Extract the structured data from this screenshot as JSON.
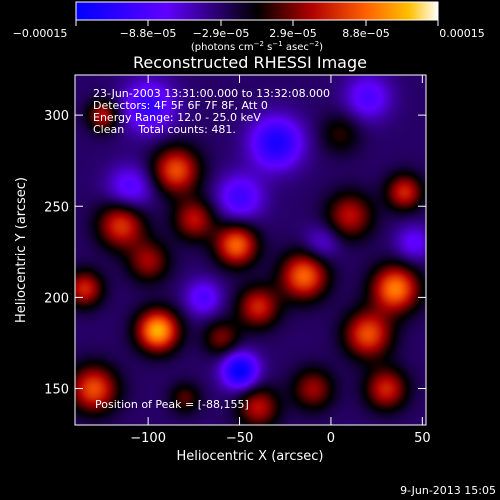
{
  "chart_data": {
    "type": "heatmap",
    "title": "Reconstructed RHESSI Image",
    "xlabel": "Heliocentric X (arcsec)",
    "ylabel": "Heliocentric Y (arcsec)",
    "xlim": [
      -140,
      52
    ],
    "ylim": [
      130,
      322
    ],
    "x_ticks": [
      -100,
      -50,
      0,
      50
    ],
    "x_tick_labels": [
      "−100",
      "−50",
      "0",
      "50"
    ],
    "y_ticks": [
      150,
      200,
      250,
      300
    ],
    "y_tick_labels": [
      "150",
      "200",
      "250",
      "300"
    ],
    "colorbar": {
      "range": [
        -0.00015,
        0.00015
      ],
      "ticks": [
        -0.00015,
        -8.8e-05,
        -2.9e-05,
        2.9e-05,
        8.8e-05,
        0.00015
      ],
      "tick_labels": [
        "−0.00015",
        "−8.8e−05",
        "−2.9e−05",
        "2.9e−05",
        "8.8e−05",
        "0.00015"
      ],
      "unit_base": "(photons cm",
      "unit_sup1": "−2",
      "unit_mid": " s",
      "unit_sup2": "−1",
      "unit_end": " asec",
      "unit_sup3": "−2",
      "unit_close": ")"
    },
    "annotations": [
      "23-Jun-2003 13:31:00.000 to 13:32:08.000",
      "Detectors: 4F 5F 6F 7F 8F, Att 0",
      "Energy Range: 12.0 - 25.0 keV",
      "Clean    Total counts: 481."
    ],
    "peak_label": "Position of Peak = [-88,155]",
    "peak": [
      -88,
      155
    ],
    "blobs": [
      {
        "x": -95,
        "y": 182,
        "v": 0.00015,
        "s": 8
      },
      {
        "x": -115,
        "y": 240,
        "v": 0.0001,
        "s": 9
      },
      {
        "x": -85,
        "y": 270,
        "v": 0.00011,
        "s": 9
      },
      {
        "x": -75,
        "y": 243,
        "v": 8e-05,
        "s": 8
      },
      {
        "x": -52,
        "y": 229,
        "v": 0.00012,
        "s": 8
      },
      {
        "x": -15,
        "y": 212,
        "v": 0.00012,
        "s": 9
      },
      {
        "x": -40,
        "y": 195,
        "v": 9e-05,
        "s": 8
      },
      {
        "x": -100,
        "y": 220,
        "v": 7e-05,
        "s": 8
      },
      {
        "x": -125,
        "y": 300,
        "v": 8e-05,
        "s": 6
      },
      {
        "x": -130,
        "y": 150,
        "v": 0.00011,
        "s": 9
      },
      {
        "x": -135,
        "y": 205,
        "v": 9e-05,
        "s": 7
      },
      {
        "x": -60,
        "y": 178,
        "v": 6e-05,
        "s": 7
      },
      {
        "x": 20,
        "y": 180,
        "v": 0.00011,
        "s": 9
      },
      {
        "x": 10,
        "y": 245,
        "v": 8e-05,
        "s": 9
      },
      {
        "x": 35,
        "y": 205,
        "v": 0.00013,
        "s": 9
      },
      {
        "x": -10,
        "y": 150,
        "v": 7e-05,
        "s": 8
      },
      {
        "x": 30,
        "y": 150,
        "v": 9e-05,
        "s": 8
      },
      {
        "x": -40,
        "y": 140,
        "v": 8e-05,
        "s": 8
      },
      {
        "x": -80,
        "y": 145,
        "v": 5e-05,
        "s": 6
      },
      {
        "x": 40,
        "y": 258,
        "v": 9e-05,
        "s": 7
      },
      {
        "x": 5,
        "y": 290,
        "v": 4e-05,
        "s": 8
      },
      {
        "x": -100,
        "y": 305,
        "v": -8e-05,
        "s": 10
      },
      {
        "x": -110,
        "y": 260,
        "v": -6e-05,
        "s": 9
      },
      {
        "x": -50,
        "y": 255,
        "v": -7e-05,
        "s": 9
      },
      {
        "x": -30,
        "y": 285,
        "v": -0.0001,
        "s": 10
      },
      {
        "x": 20,
        "y": 310,
        "v": -6e-05,
        "s": 9
      },
      {
        "x": -50,
        "y": 160,
        "v": -0.00012,
        "s": 7
      },
      {
        "x": -70,
        "y": 200,
        "v": -6e-05,
        "s": 7
      },
      {
        "x": 45,
        "y": 230,
        "v": -5e-05,
        "s": 7
      },
      {
        "x": -5,
        "y": 230,
        "v": -4e-05,
        "s": 7
      }
    ]
  },
  "footer": {
    "timestamp": "9-Jun-2013 15:05"
  }
}
